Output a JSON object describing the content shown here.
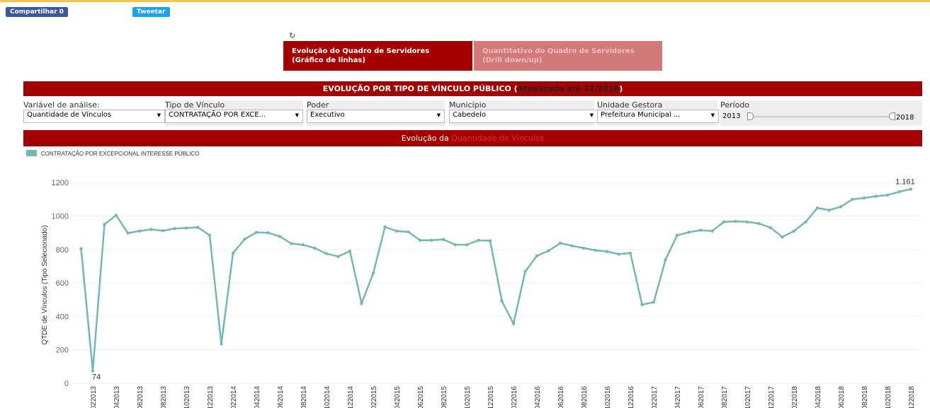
{
  "header": {
    "share": "Compartilhar 0",
    "tweet": "Tweetar"
  },
  "tabs": [
    {
      "line1": "Evolução do Quadro de Servidores",
      "line2": "(Gráfico de linhas)"
    },
    {
      "line1": "Quantitativo do Quadro de Servidores",
      "line2": "(Drill down/up)"
    }
  ],
  "banner": {
    "before": "EVOLUÇÃO POR TIPO DE VÍNCULO PÚBLICO (",
    "highlight": "Atualizado até 12/2018",
    "after": ")"
  },
  "filters": [
    {
      "label": "Variável de análise:",
      "value": "Quantidade de Vínculos"
    },
    {
      "label": "Tipo de Vínculo",
      "value": "CONTRATAÇÃO POR EXCE..."
    },
    {
      "label": "Poder",
      "value": "Executivo"
    },
    {
      "label": "Município",
      "value": "Cabedelo"
    },
    {
      "label": "Unidade Gestora",
      "value": "Prefeitura Municipal ..."
    }
  ],
  "period": {
    "label": "Período",
    "start": "2013",
    "end": "2018"
  },
  "chart_data": {
    "type": "line",
    "title_prefix": "Evolução da",
    "title_highlight": "Quantidade de Vínculos",
    "y_label": "QTDE de Vínculos (Tipo Selecionado)",
    "categories": [
      null,
      "022013",
      null,
      "042013",
      null,
      "062013",
      null,
      "082013",
      null,
      "102013",
      null,
      "122013",
      null,
      "022014",
      null,
      "042014",
      null,
      "062014",
      null,
      "082014",
      null,
      "102014",
      null,
      "122014",
      null,
      "022015",
      null,
      "042015",
      null,
      "062015",
      null,
      "082015",
      null,
      "102015",
      null,
      "122015",
      null,
      "022016",
      null,
      "042016",
      null,
      "062016",
      null,
      "082016",
      null,
      "102016",
      null,
      "122016",
      null,
      "022017",
      null,
      "042017",
      null,
      "062017",
      null,
      "082017",
      null,
      "102017",
      null,
      "122017",
      null,
      "022018",
      null,
      "042018",
      null,
      "062018",
      null,
      "082018",
      null,
      "102018",
      null,
      "122018"
    ],
    "series": [
      {
        "name": "CONTRATAÇÃO POR EXCEPCIONAL INTERESSE PÚBLICO",
        "color": "#76b7b2",
        "values": [
          805,
          74,
          950,
          1005,
          898,
          910,
          920,
          912,
          925,
          928,
          932,
          885,
          235,
          778,
          862,
          902,
          900,
          878,
          835,
          828,
          808,
          775,
          758,
          790,
          478,
          658,
          935,
          910,
          905,
          855,
          855,
          860,
          828,
          828,
          855,
          852,
          492,
          357,
          668,
          762,
          792,
          838,
          822,
          808,
          795,
          788,
          772,
          778,
          470,
          485,
          738,
          885,
          903,
          915,
          910,
          965,
          968,
          965,
          955,
          930,
          875,
          910,
          965,
          1048,
          1035,
          1055,
          1100,
          1108,
          1118,
          1125,
          1145,
          1161
        ],
        "value_labels": [
          null,
          "74",
          null,
          null,
          null,
          null,
          null,
          null,
          null,
          null,
          null,
          null,
          null,
          null,
          null,
          null,
          null,
          null,
          null,
          null,
          null,
          null,
          null,
          null,
          null,
          null,
          null,
          null,
          null,
          null,
          null,
          null,
          null,
          null,
          null,
          null,
          null,
          null,
          null,
          null,
          null,
          null,
          null,
          null,
          null,
          null,
          null,
          null,
          null,
          null,
          null,
          null,
          null,
          null,
          null,
          null,
          null,
          null,
          null,
          null,
          null,
          null,
          null,
          null,
          null,
          null,
          null,
          null,
          null,
          null,
          null,
          "1.161"
        ]
      }
    ],
    "ylim": [
      0,
      1260
    ],
    "yticks": [
      0,
      200,
      400,
      600,
      800,
      1000,
      1200
    ],
    "grid": true
  }
}
